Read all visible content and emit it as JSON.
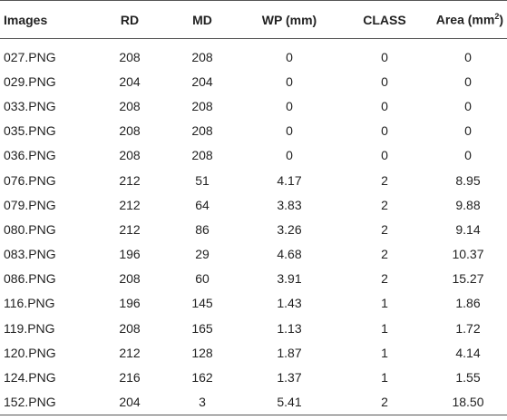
{
  "table": {
    "headers": [
      "Images",
      "RD",
      "MD",
      "WP (mm)",
      "CLASS",
      "Area (mm",
      "2",
      ")"
    ],
    "rows": [
      [
        "027.PNG",
        "208",
        "208",
        "0",
        "0",
        "0"
      ],
      [
        "029.PNG",
        "204",
        "204",
        "0",
        "0",
        "0"
      ],
      [
        "033.PNG",
        "208",
        "208",
        "0",
        "0",
        "0"
      ],
      [
        "035.PNG",
        "208",
        "208",
        "0",
        "0",
        "0"
      ],
      [
        "036.PNG",
        "208",
        "208",
        "0",
        "0",
        "0"
      ],
      [
        "076.PNG",
        "212",
        "51",
        "4.17",
        "2",
        "8.95"
      ],
      [
        "079.PNG",
        "212",
        "64",
        "3.83",
        "2",
        "9.88"
      ],
      [
        "080.PNG",
        "212",
        "86",
        "3.26",
        "2",
        "9.14"
      ],
      [
        "083.PNG",
        "196",
        "29",
        "4.68",
        "2",
        "10.37"
      ],
      [
        "086.PNG",
        "208",
        "60",
        "3.91",
        "2",
        "15.27"
      ],
      [
        "116.PNG",
        "196",
        "145",
        "1.43",
        "1",
        "1.86"
      ],
      [
        "119.PNG",
        "208",
        "165",
        "1.13",
        "1",
        "1.72"
      ],
      [
        "120.PNG",
        "212",
        "128",
        "1.87",
        "1",
        "4.14"
      ],
      [
        "124.PNG",
        "216",
        "162",
        "1.37",
        "1",
        "1.55"
      ],
      [
        "152.PNG",
        "204",
        "3",
        "5.41",
        "2",
        "18.50"
      ]
    ]
  }
}
